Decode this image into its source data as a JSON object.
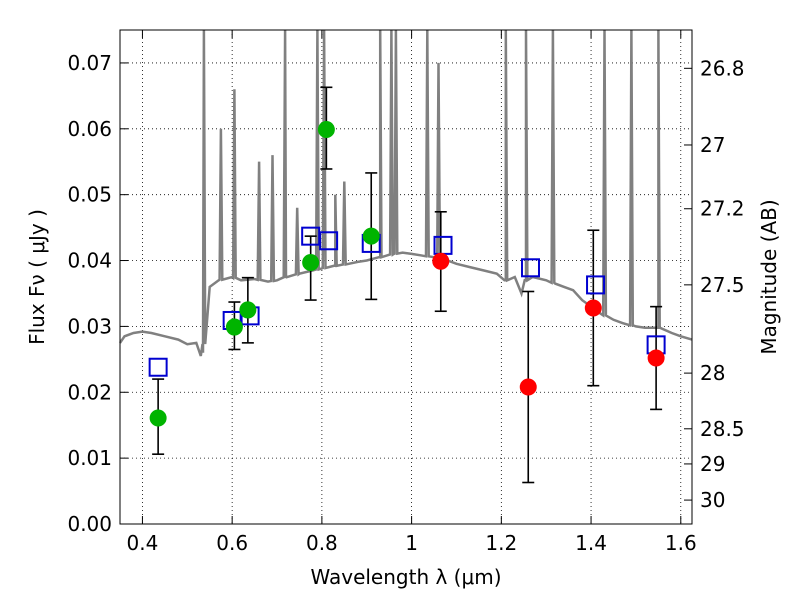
{
  "chart_data": {
    "type": "scatter",
    "xlabel": "Wavelength  λ (μm)",
    "ylabel": "Flux  Fν  ( μJy )",
    "y2label": "Magnitude (AB)",
    "xlim": [
      0.35,
      1.625
    ],
    "ylim": [
      0.0,
      0.075
    ],
    "x_ticks": [
      0.4,
      0.6,
      0.8,
      1.0,
      1.2,
      1.4,
      1.6
    ],
    "x_tick_labels": [
      "0.4",
      "0.6",
      "0.8",
      "1",
      "1.2",
      "1.4",
      "1.6"
    ],
    "y_ticks": [
      0.0,
      0.01,
      0.02,
      0.03,
      0.04,
      0.05,
      0.06,
      0.07
    ],
    "y_tick_labels": [
      "0.00",
      "0.01",
      "0.02",
      "0.03",
      "0.04",
      "0.05",
      "0.06",
      "0.07"
    ],
    "y2_ticks": [
      "26.8",
      "27",
      "27.2",
      "27.5",
      "28",
      "28.5",
      "29",
      "30"
    ],
    "grid": true,
    "series": [
      {
        "marker": "square",
        "color": "#0000d0",
        "points": [
          {
            "x": 0.435,
            "y": 0.0238
          },
          {
            "x": 0.6,
            "y": 0.0309
          },
          {
            "x": 0.64,
            "y": 0.0316
          },
          {
            "x": 0.775,
            "y": 0.0437
          },
          {
            "x": 0.815,
            "y": 0.043
          },
          {
            "x": 0.91,
            "y": 0.0426
          },
          {
            "x": 1.07,
            "y": 0.0423
          },
          {
            "x": 1.265,
            "y": 0.0389
          },
          {
            "x": 1.41,
            "y": 0.0363
          },
          {
            "x": 1.545,
            "y": 0.0272
          }
        ]
      },
      {
        "marker": "circle",
        "color": "#00b400",
        "points": [
          {
            "x": 0.435,
            "y": 0.0161,
            "err_lo": 0.0106,
            "err_hi": 0.022
          },
          {
            "x": 0.605,
            "y": 0.0299,
            "err_lo": 0.0265,
            "err_hi": 0.0337
          },
          {
            "x": 0.635,
            "y": 0.0325,
            "err_lo": 0.0275,
            "err_hi": 0.0374
          },
          {
            "x": 0.775,
            "y": 0.0397,
            "err_lo": 0.034,
            "err_hi": 0.0437
          },
          {
            "x": 0.81,
            "y": 0.0599,
            "err_lo": 0.0539,
            "err_hi": 0.0663
          },
          {
            "x": 0.91,
            "y": 0.0437,
            "err_lo": 0.0341,
            "err_hi": 0.0533
          }
        ]
      },
      {
        "marker": "circle",
        "color": "#ff0000",
        "points": [
          {
            "x": 1.065,
            "y": 0.0399,
            "err_lo": 0.0323,
            "err_hi": 0.0474
          },
          {
            "x": 1.26,
            "y": 0.0208,
            "err_lo": 0.0063,
            "err_hi": 0.0353
          },
          {
            "x": 1.405,
            "y": 0.0328,
            "err_lo": 0.021,
            "err_hi": 0.0446
          },
          {
            "x": 1.545,
            "y": 0.0252,
            "err_lo": 0.0174,
            "err_hi": 0.033
          }
        ]
      }
    ],
    "spectrum": {
      "color": "#808080",
      "continuum": [
        [
          0.35,
          0.0275
        ],
        [
          0.36,
          0.0285
        ],
        [
          0.38,
          0.029
        ],
        [
          0.4,
          0.0292
        ],
        [
          0.42,
          0.029
        ],
        [
          0.45,
          0.0285
        ],
        [
          0.48,
          0.028
        ],
        [
          0.5,
          0.0273
        ],
        [
          0.52,
          0.0275
        ],
        [
          0.53,
          0.0255
        ],
        [
          0.535,
          0.026
        ],
        [
          0.55,
          0.036
        ],
        [
          0.57,
          0.037
        ],
        [
          0.6,
          0.0375
        ],
        [
          0.62,
          0.037
        ],
        [
          0.65,
          0.0372
        ],
        [
          0.68,
          0.0368
        ],
        [
          0.7,
          0.037
        ],
        [
          0.72,
          0.0375
        ],
        [
          0.75,
          0.038
        ],
        [
          0.78,
          0.0385
        ],
        [
          0.8,
          0.0388
        ],
        [
          0.83,
          0.0392
        ],
        [
          0.86,
          0.0395
        ],
        [
          0.88,
          0.0398
        ],
        [
          0.9,
          0.04
        ],
        [
          0.93,
          0.0405
        ],
        [
          0.96,
          0.041
        ],
        [
          0.98,
          0.0412
        ],
        [
          1.0,
          0.041
        ],
        [
          1.02,
          0.0408
        ],
        [
          1.05,
          0.0405
        ],
        [
          1.08,
          0.04
        ],
        [
          1.1,
          0.0395
        ],
        [
          1.13,
          0.039
        ],
        [
          1.16,
          0.0385
        ],
        [
          1.19,
          0.038
        ],
        [
          1.21,
          0.037
        ],
        [
          1.23,
          0.0375
        ],
        [
          1.245,
          0.035
        ],
        [
          1.255,
          0.037
        ],
        [
          1.27,
          0.0375
        ],
        [
          1.3,
          0.037
        ],
        [
          1.32,
          0.0365
        ],
        [
          1.34,
          0.036
        ],
        [
          1.36,
          0.0355
        ],
        [
          1.38,
          0.034
        ],
        [
          1.4,
          0.033
        ],
        [
          1.42,
          0.032
        ],
        [
          1.45,
          0.031
        ],
        [
          1.47,
          0.0305
        ],
        [
          1.5,
          0.03
        ],
        [
          1.52,
          0.0298
        ],
        [
          1.55,
          0.0298
        ],
        [
          1.58,
          0.029
        ],
        [
          1.6,
          0.0285
        ],
        [
          1.625,
          0.028
        ]
      ],
      "emission_lines": [
        [
          0.537,
          0.076
        ],
        [
          0.575,
          0.06
        ],
        [
          0.605,
          0.066
        ],
        [
          0.66,
          0.055
        ],
        [
          0.69,
          0.056
        ],
        [
          0.718,
          0.076
        ],
        [
          0.745,
          0.048
        ],
        [
          0.79,
          0.076
        ],
        [
          0.805,
          0.076
        ],
        [
          0.83,
          0.05
        ],
        [
          0.85,
          0.052
        ],
        [
          0.93,
          0.076
        ],
        [
          0.955,
          0.076
        ],
        [
          0.965,
          0.076
        ],
        [
          1.035,
          0.076
        ],
        [
          1.06,
          0.07
        ],
        [
          1.21,
          0.076
        ],
        [
          1.255,
          0.076
        ],
        [
          1.315,
          0.076
        ],
        [
          1.43,
          0.076
        ],
        [
          1.49,
          0.076
        ],
        [
          1.55,
          0.076
        ]
      ]
    }
  }
}
